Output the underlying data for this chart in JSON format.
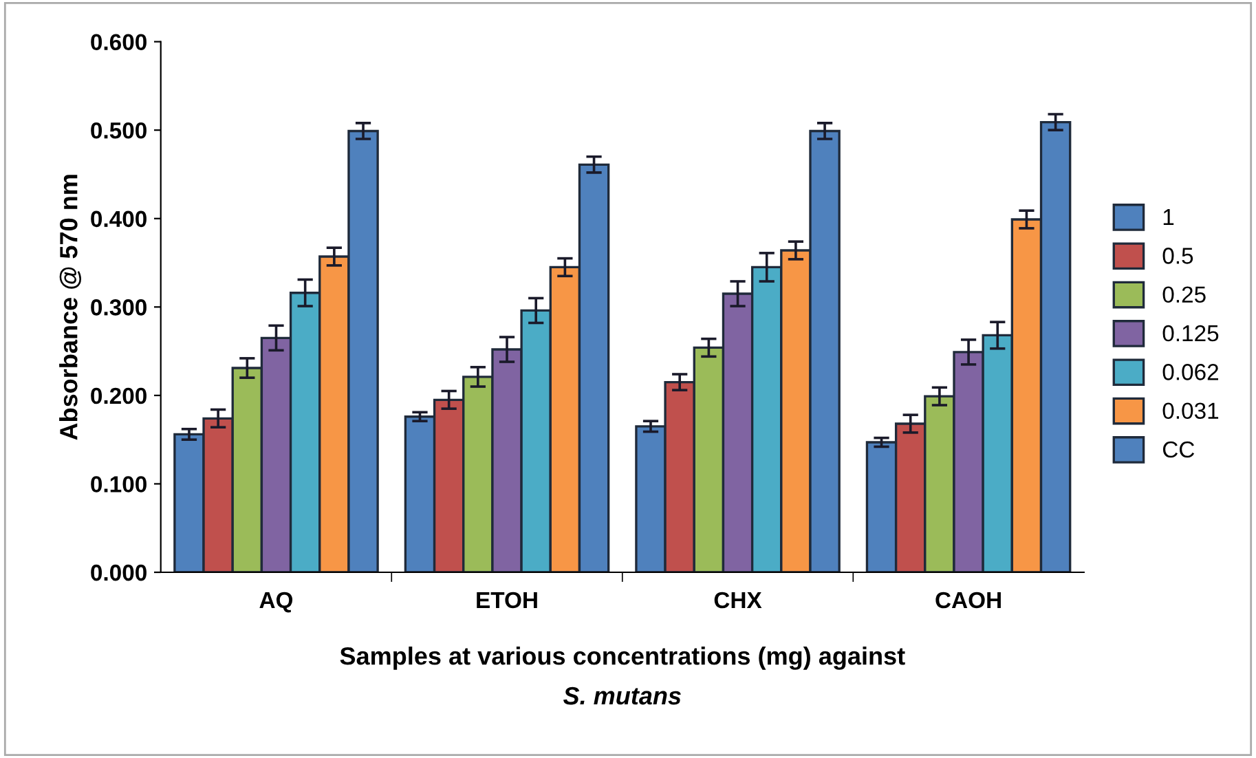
{
  "chart_data": {
    "type": "bar",
    "ylabel": "Absorbance @ 570 nm",
    "xlabel": "Samples at various concentrations (mg) against\nS. mutans",
    "categories": [
      "AQ",
      "ETOH",
      "CHX",
      "CAOH"
    ],
    "series": [
      {
        "name": "1",
        "color": "#4f81bd",
        "values": [
          0.156,
          0.176,
          0.165,
          0.147
        ],
        "errors": [
          0.006,
          0.005,
          0.006,
          0.005
        ]
      },
      {
        "name": "0.5",
        "color": "#c0504d",
        "values": [
          0.174,
          0.195,
          0.215,
          0.168
        ],
        "errors": [
          0.01,
          0.01,
          0.009,
          0.01
        ]
      },
      {
        "name": "0.25",
        "color": "#9bbb59",
        "values": [
          0.231,
          0.221,
          0.254,
          0.199
        ],
        "errors": [
          0.011,
          0.011,
          0.01,
          0.01
        ]
      },
      {
        "name": "0.125",
        "color": "#8064a2",
        "values": [
          0.265,
          0.252,
          0.315,
          0.249
        ],
        "errors": [
          0.014,
          0.014,
          0.014,
          0.014
        ]
      },
      {
        "name": "0.062",
        "color": "#4bacc6",
        "values": [
          0.316,
          0.296,
          0.345,
          0.268
        ],
        "errors": [
          0.015,
          0.014,
          0.016,
          0.015
        ]
      },
      {
        "name": "0.031",
        "color": "#f79646",
        "values": [
          0.357,
          0.345,
          0.364,
          0.399
        ],
        "errors": [
          0.01,
          0.01,
          0.01,
          0.01
        ]
      },
      {
        "name": "CC",
        "color": "#4f81bd",
        "values": [
          0.499,
          0.461,
          0.499,
          0.509
        ],
        "errors": [
          0.009,
          0.009,
          0.009,
          0.009
        ]
      }
    ],
    "ylim": [
      0,
      0.6
    ],
    "yticks": [
      {
        "value": 0,
        "label": "0.000"
      },
      {
        "value": 0.1,
        "label": "0.100"
      },
      {
        "value": 0.2,
        "label": "0.200"
      },
      {
        "value": 0.3,
        "label": "0.300"
      },
      {
        "value": 0.4,
        "label": "0.400"
      },
      {
        "value": 0.5,
        "label": "0.500"
      },
      {
        "value": 0.6,
        "label": "0.600"
      }
    ],
    "grid": false,
    "legend": "right"
  }
}
